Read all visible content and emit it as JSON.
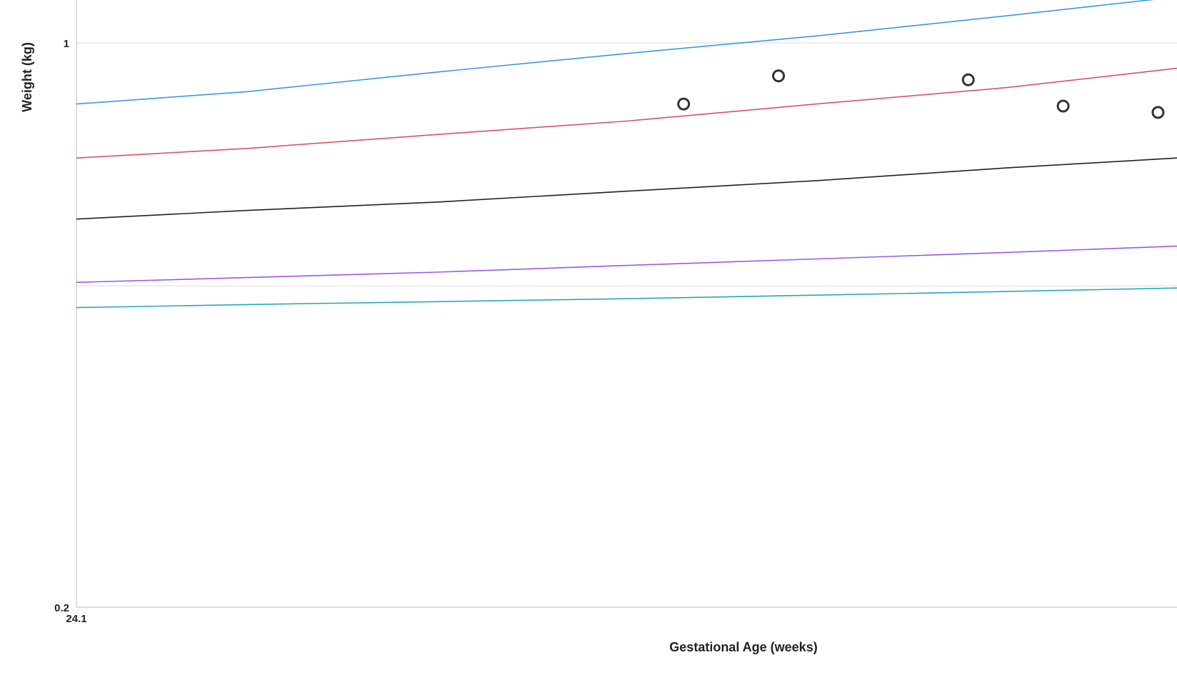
{
  "chart_data": {
    "type": "line",
    "title": "",
    "xlabel": "Gestational Age (weeks)",
    "ylabel": "Weight (kg)",
    "y_scale": "log",
    "xlim": [
      24.1,
      29.9
    ],
    "ylim": [
      0.2,
      1.13
    ],
    "x_ticks": [
      {
        "value": 24.1,
        "label": "24.1"
      }
    ],
    "y_ticks": [
      {
        "value": 1,
        "label": "1"
      },
      {
        "value": 0.2,
        "label": "0.2"
      }
    ],
    "grid": true,
    "legend": "none",
    "series": [
      {
        "kind": "line",
        "color": "#3a9ad9",
        "x": [
          24.1,
          25.0,
          26.0,
          27.0,
          28.0,
          29.0,
          29.9
        ],
        "y": [
          0.84,
          0.87,
          0.92,
          0.97,
          1.02,
          1.08,
          1.14
        ]
      },
      {
        "kind": "line",
        "color": "#d9545f",
        "x": [
          24.1,
          25.0,
          26.0,
          27.0,
          28.0,
          29.0,
          29.9
        ],
        "y": [
          0.72,
          0.74,
          0.77,
          0.8,
          0.84,
          0.88,
          0.93
        ]
      },
      {
        "kind": "line",
        "color": "#222222",
        "x": [
          24.1,
          25.0,
          26.0,
          27.0,
          28.0,
          29.0,
          29.9
        ],
        "y": [
          0.605,
          0.62,
          0.635,
          0.655,
          0.675,
          0.7,
          0.72
        ]
      },
      {
        "kind": "line",
        "color": "#9b59e8",
        "x": [
          24.1,
          25.0,
          26.0,
          27.0,
          28.0,
          29.0,
          29.9
        ],
        "y": [
          0.505,
          0.512,
          0.52,
          0.53,
          0.54,
          0.55,
          0.56
        ]
      },
      {
        "kind": "line",
        "color": "#26a9b4",
        "x": [
          24.1,
          25.0,
          26.0,
          27.0,
          28.0,
          29.0,
          29.9
        ],
        "y": [
          0.47,
          0.474,
          0.478,
          0.482,
          0.487,
          0.492,
          0.497
        ]
      },
      {
        "kind": "scatter",
        "color": "#333333",
        "x": [
          27.3,
          27.8,
          28.8,
          29.3,
          29.8
        ],
        "y": [
          0.84,
          0.91,
          0.9,
          0.835,
          0.82
        ]
      }
    ]
  }
}
